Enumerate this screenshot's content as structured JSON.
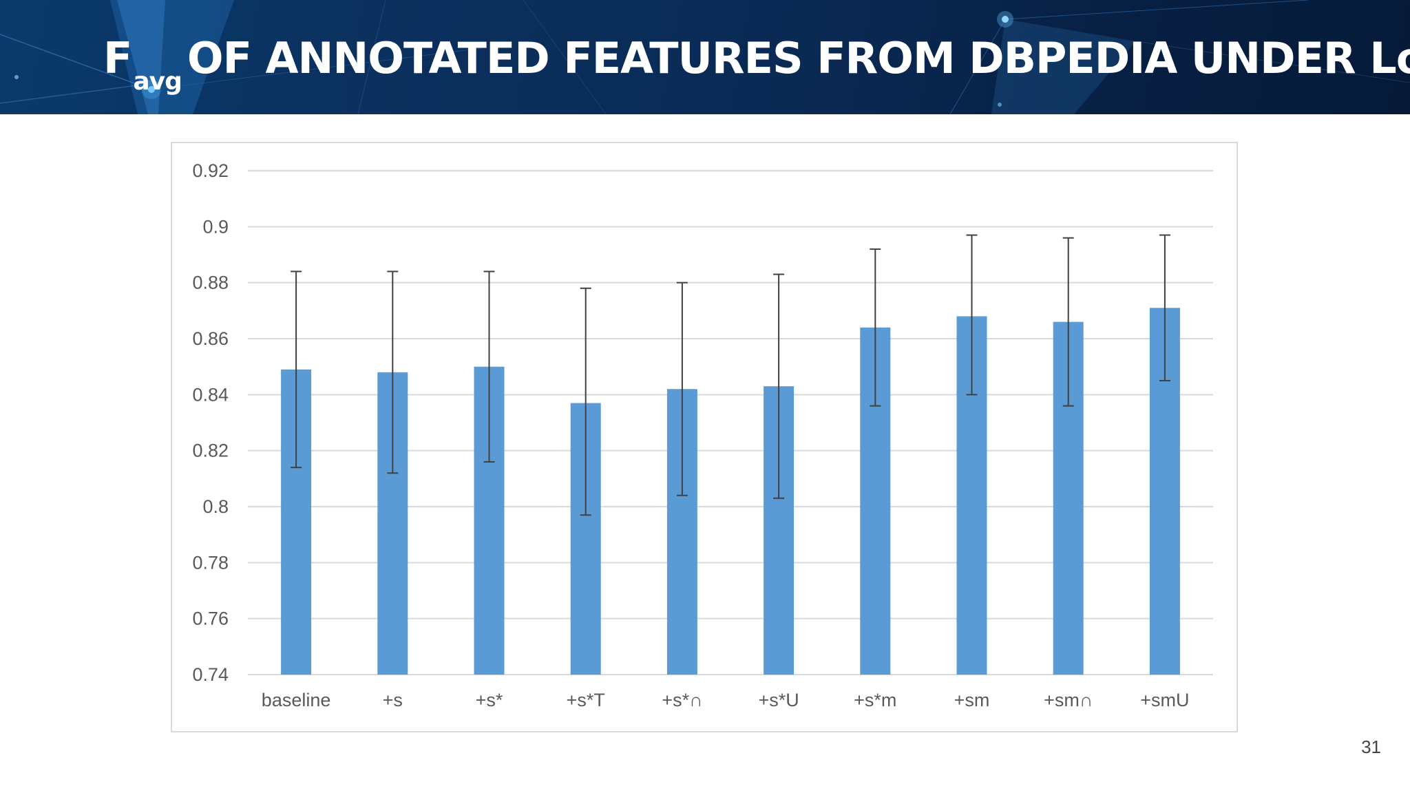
{
  "header": {
    "title_symbol": "F",
    "title_subscript": "avg",
    "title_rest": "OF ANNOTATED FEATURES FROM DBPEDIA UNDER Log"
  },
  "page_number": "31",
  "chart_data": {
    "type": "bar",
    "title": "",
    "xlabel": "",
    "ylabel": "",
    "ylim": [
      0.74,
      0.92
    ],
    "ytick_labels": [
      "0.74",
      "0.76",
      "0.78",
      "0.8",
      "0.82",
      "0.84",
      "0.86",
      "0.88",
      "0.9",
      "0.92"
    ],
    "yticks": [
      0.74,
      0.76,
      0.78,
      0.8,
      0.82,
      0.84,
      0.86,
      0.88,
      0.9,
      0.92
    ],
    "grid": true,
    "legend": "none",
    "categories": [
      "baseline",
      "+s",
      "+s*",
      "+s*T",
      "+s*∩",
      "+s*U",
      "+s*m",
      "+sm",
      "+sm∩",
      "+smU"
    ],
    "values": [
      0.849,
      0.848,
      0.85,
      0.837,
      0.842,
      0.843,
      0.864,
      0.868,
      0.866,
      0.871
    ],
    "error_low": [
      0.814,
      0.812,
      0.816,
      0.797,
      0.804,
      0.803,
      0.836,
      0.84,
      0.836,
      0.845
    ],
    "error_high": [
      0.884,
      0.884,
      0.884,
      0.878,
      0.88,
      0.883,
      0.892,
      0.897,
      0.896,
      0.897
    ],
    "colors": {
      "bar": "#5b9bd5",
      "error": "#404040",
      "grid": "#d9d9d9"
    }
  }
}
